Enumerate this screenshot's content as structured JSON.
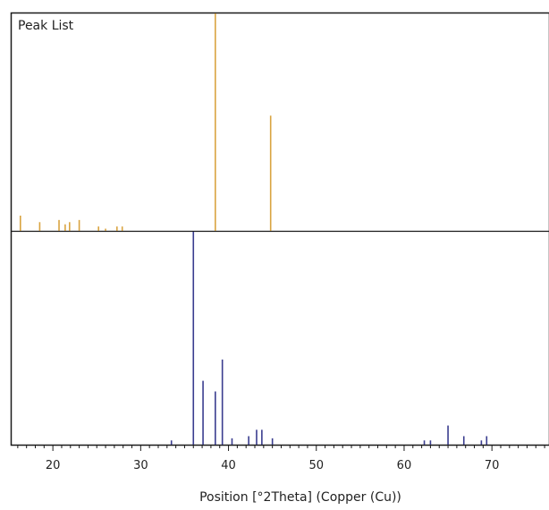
{
  "chart_data": {
    "type": "bar",
    "title": "Peak List",
    "xlabel": "Position [°2Theta] (Copper (Cu))",
    "xlim": [
      15.2,
      76.5
    ],
    "x_ticks": [
      20,
      30,
      40,
      50,
      60,
      70
    ],
    "x_minor_step": 1,
    "grid": false,
    "legend": "none",
    "series": [
      {
        "color": "#D9A441",
        "ylim": [
          0,
          100
        ],
        "peaks": [
          {
            "x": 16.3,
            "y": 7
          },
          {
            "x": 18.5,
            "y": 4
          },
          {
            "x": 20.7,
            "y": 5
          },
          {
            "x": 21.4,
            "y": 3
          },
          {
            "x": 21.9,
            "y": 4
          },
          {
            "x": 23.0,
            "y": 5
          },
          {
            "x": 25.2,
            "y": 2
          },
          {
            "x": 26.0,
            "y": 1
          },
          {
            "x": 27.3,
            "y": 2
          },
          {
            "x": 27.9,
            "y": 2
          },
          {
            "x": 38.5,
            "y": 100
          },
          {
            "x": 44.8,
            "y": 53
          }
        ]
      },
      {
        "color": "#3A3D8F",
        "ylim": [
          0,
          100
        ],
        "peaks": [
          {
            "x": 33.5,
            "y": 2
          },
          {
            "x": 36.0,
            "y": 100
          },
          {
            "x": 37.1,
            "y": 30
          },
          {
            "x": 38.5,
            "y": 25
          },
          {
            "x": 39.3,
            "y": 40
          },
          {
            "x": 40.4,
            "y": 3
          },
          {
            "x": 42.3,
            "y": 4
          },
          {
            "x": 43.2,
            "y": 7
          },
          {
            "x": 43.8,
            "y": 7
          },
          {
            "x": 45.0,
            "y": 3
          },
          {
            "x": 62.3,
            "y": 2
          },
          {
            "x": 63.0,
            "y": 2
          },
          {
            "x": 65.0,
            "y": 9
          },
          {
            "x": 66.8,
            "y": 4
          },
          {
            "x": 68.8,
            "y": 2
          },
          {
            "x": 69.4,
            "y": 4
          }
        ]
      }
    ]
  }
}
